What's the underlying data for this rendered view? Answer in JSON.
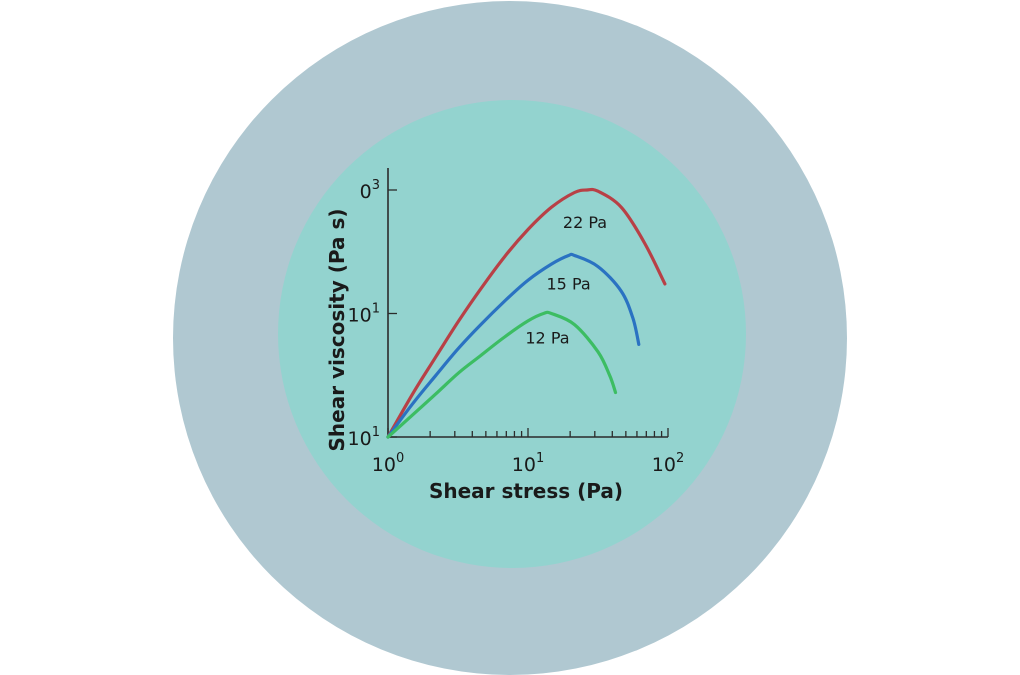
{
  "colors": {
    "outer_ring": "#b0c8d1",
    "inner_disc": "#93d3cf",
    "axis": "#2b2b2b"
  },
  "chart_data": {
    "type": "line",
    "title": "",
    "xlabel": "Shear stress (Pa)",
    "ylabel": "Shear viscosity (Pa s)",
    "x_scale": "log",
    "y_scale": "log",
    "grid": false,
    "legend": "inline labels at curve peaks",
    "x_ticks": [
      {
        "base": "10",
        "exp": "0",
        "value": 1
      },
      {
        "base": "10",
        "exp": "1",
        "value": 10
      },
      {
        "base": "10",
        "exp": "2",
        "value": 100
      }
    ],
    "y_ticks": [
      {
        "base": "10",
        "exp": "1",
        "value": 0
      },
      {
        "base": "10",
        "exp": "1",
        "value": 1
      },
      {
        "base": "0",
        "exp": "3",
        "value": 2
      }
    ],
    "xlim": [
      1,
      100
    ],
    "y_range_decades": [
      0,
      2
    ],
    "series": [
      {
        "name": "22 Pa",
        "color": "#b84046",
        "x": [
          1.0,
          1.5,
          2.2,
          3.2,
          4.6,
          6.8,
          10.0,
          14.7,
          21.5,
          26.4,
          31.6,
          46.4,
          68.1,
          95.0
        ],
        "y_decade": [
          0.0,
          0.35,
          0.65,
          0.94,
          1.2,
          1.46,
          1.68,
          1.86,
          1.98,
          2.0,
          1.99,
          1.86,
          1.57,
          1.24
        ]
      },
      {
        "name": "15 Pa",
        "color": "#2a72c2",
        "x": [
          1.0,
          1.5,
          2.2,
          3.2,
          4.6,
          6.8,
          10.0,
          14.7,
          19.5,
          21.5,
          31.6,
          46.4,
          56.2,
          61.9
        ],
        "y_decade": [
          0.0,
          0.27,
          0.5,
          0.72,
          0.91,
          1.1,
          1.27,
          1.4,
          1.47,
          1.47,
          1.38,
          1.18,
          0.96,
          0.75
        ]
      },
      {
        "name": "12 Pa",
        "color": "#3cbd63",
        "x": [
          1.0,
          1.5,
          2.2,
          3.2,
          4.6,
          6.8,
          10.0,
          12.9,
          14.7,
          21.5,
          31.6,
          38.3,
          42.2
        ],
        "y_decade": [
          0.0,
          0.18,
          0.35,
          0.52,
          0.66,
          0.81,
          0.94,
          1.0,
          1.0,
          0.91,
          0.69,
          0.5,
          0.36
        ]
      }
    ]
  }
}
